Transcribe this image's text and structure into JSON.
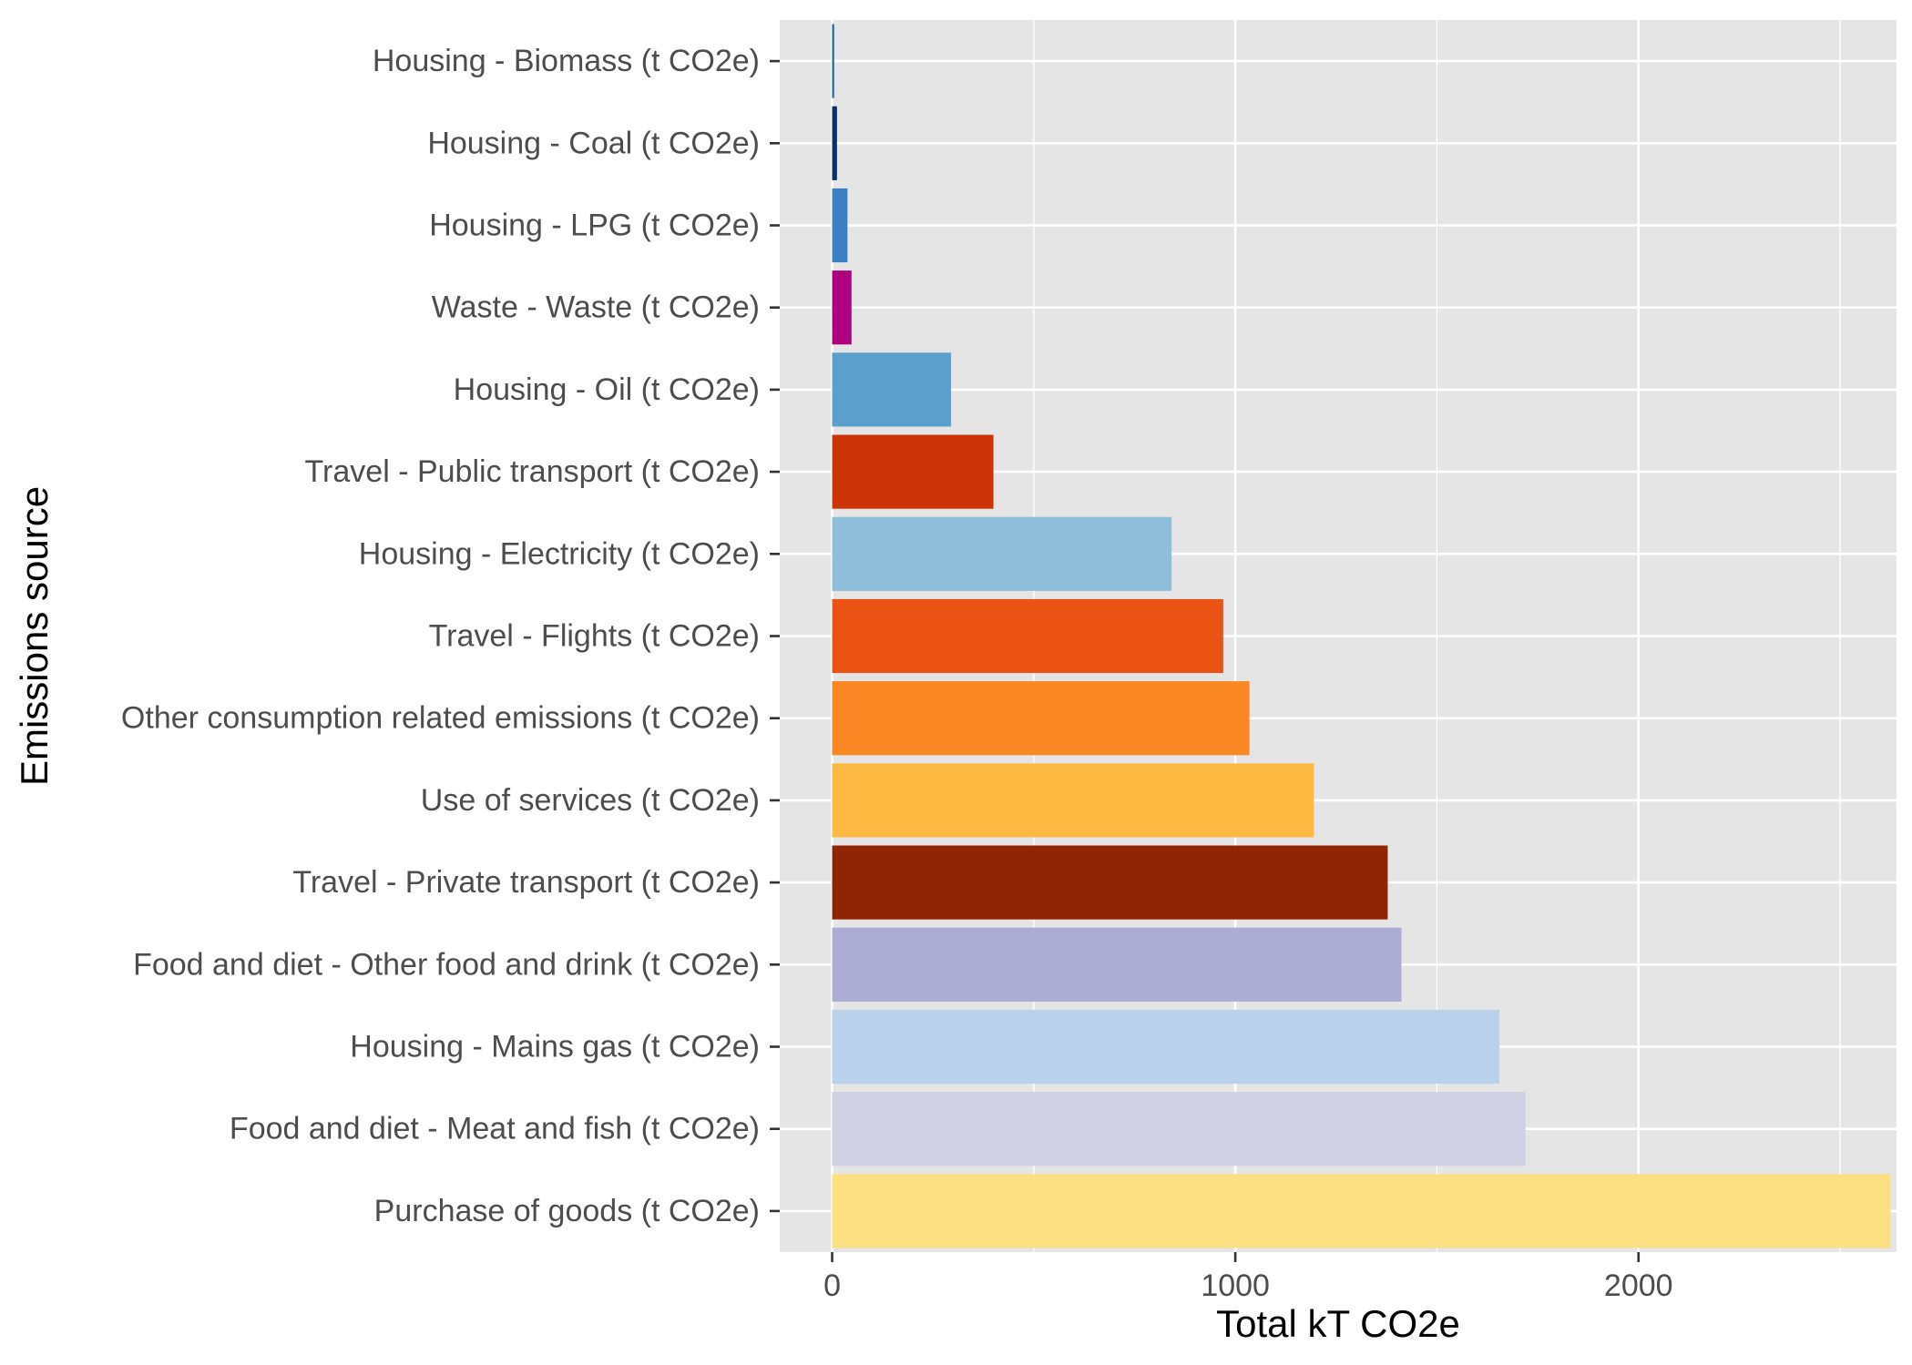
{
  "chart_data": {
    "type": "bar",
    "orientation": "horizontal",
    "xlabel": "Total kT CO2e",
    "ylabel": "Emissions source",
    "xlim": [
      -130,
      2640
    ],
    "xticks": [
      0,
      1000,
      2000
    ],
    "xtick_labels": [
      "0",
      "1000",
      "2000"
    ],
    "grid": true,
    "legend": "none",
    "categories": [
      "Housing - Biomass (t CO2e)",
      "Housing - Coal (t CO2e)",
      "Housing - LPG (t CO2e)",
      "Waste - Waste (t CO2e)",
      "Housing - Oil (t CO2e)",
      "Travel - Public transport (t CO2e)",
      "Housing - Electricity (t CO2e)",
      "Travel - Flights (t CO2e)",
      "Other consumption related emissions (t CO2e)",
      "Use of services (t CO2e)",
      "Travel - Private transport (t CO2e)",
      "Food and diet - Other food and drink (t CO2e)",
      "Housing - Mains gas (t CO2e)",
      "Food and diet - Meat and fish (t CO2e)",
      "Purchase of goods (t CO2e)"
    ],
    "values": [
      5,
      12,
      38,
      48,
      295,
      400,
      842,
      970,
      1035,
      1195,
      1378,
      1412,
      1655,
      1720,
      2625
    ],
    "colors": [
      "#2166ac",
      "#08306b",
      "#3a7fc1",
      "#ae017e",
      "#5b9fcd",
      "#cc3407",
      "#8fbedb",
      "#ea5314",
      "#f98723",
      "#fbb941",
      "#8f2505",
      "#adacd4",
      "#bad1eb",
      "#d0d1e4",
      "#fbdf80"
    ]
  }
}
